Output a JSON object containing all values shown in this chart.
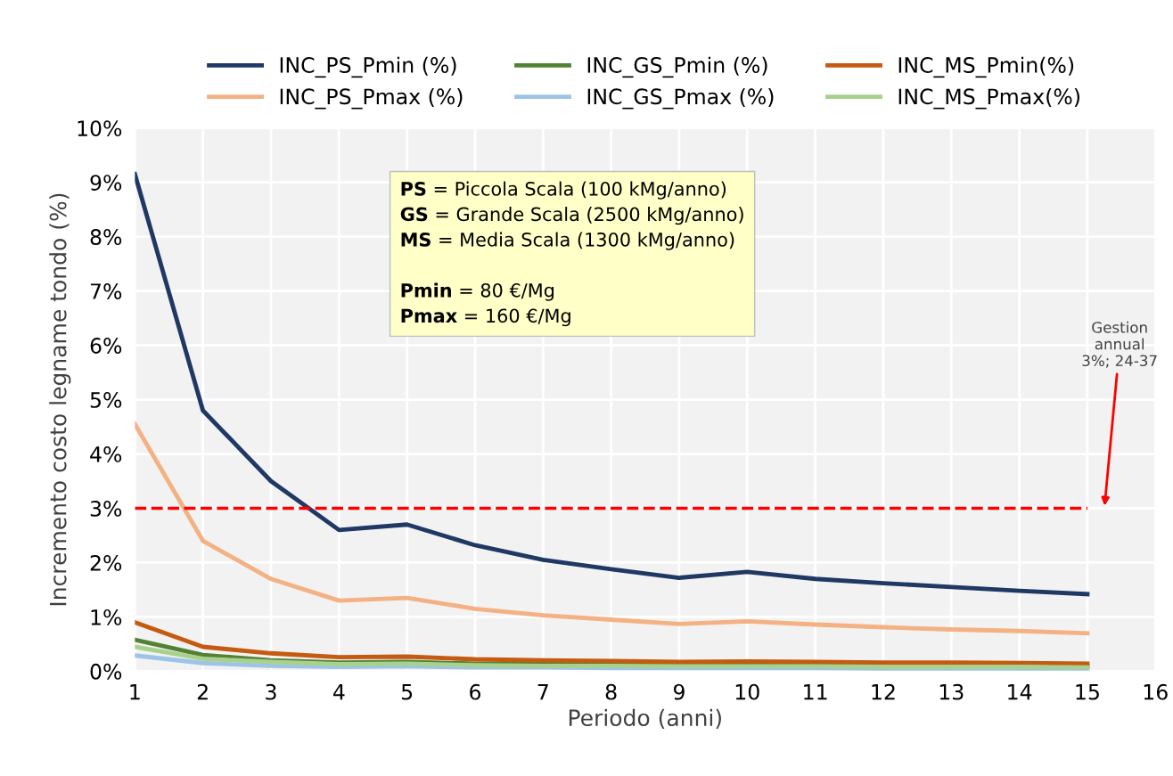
{
  "chart_data": {
    "type": "line",
    "xlabel": "Periodo (anni)",
    "ylabel": "Incremento costo legname tondo (%)",
    "x": [
      1,
      2,
      3,
      4,
      5,
      6,
      7,
      8,
      9,
      10,
      11,
      12,
      13,
      14,
      15
    ],
    "series": [
      {
        "name": "INC_PS_Pmin (%)",
        "color": "#1f3864",
        "values": [
          9.15,
          4.8,
          3.5,
          2.6,
          2.7,
          2.32,
          2.05,
          1.88,
          1.72,
          1.83,
          1.7,
          1.62,
          1.55,
          1.48,
          1.42
        ]
      },
      {
        "name": "INC_PS_Pmax (%)",
        "color": "#f4b183",
        "values": [
          4.55,
          2.4,
          1.7,
          1.3,
          1.35,
          1.15,
          1.03,
          0.95,
          0.87,
          0.92,
          0.86,
          0.81,
          0.77,
          0.74,
          0.7
        ]
      },
      {
        "name": "INC_GS_Pmin (%)",
        "color": "#548235",
        "values": [
          0.58,
          0.3,
          0.2,
          0.16,
          0.17,
          0.14,
          0.13,
          0.12,
          0.11,
          0.12,
          0.11,
          0.1,
          0.1,
          0.1,
          0.09
        ]
      },
      {
        "name": "INC_GS_Pmax (%)",
        "color": "#9dc3e6",
        "values": [
          0.29,
          0.15,
          0.1,
          0.08,
          0.09,
          0.07,
          0.07,
          0.06,
          0.06,
          0.06,
          0.06,
          0.05,
          0.05,
          0.05,
          0.05
        ]
      },
      {
        "name": "INC_MS_Pmin(%)",
        "color": "#c55a11",
        "values": [
          0.9,
          0.45,
          0.33,
          0.26,
          0.27,
          0.22,
          0.2,
          0.19,
          0.17,
          0.18,
          0.17,
          0.16,
          0.16,
          0.15,
          0.14
        ]
      },
      {
        "name": "INC_MS_Pmax(%)",
        "color": "#a9d18e",
        "values": [
          0.45,
          0.23,
          0.17,
          0.13,
          0.14,
          0.11,
          0.1,
          0.1,
          0.09,
          0.09,
          0.09,
          0.08,
          0.08,
          0.08,
          0.07
        ]
      }
    ],
    "xlim": [
      1,
      16
    ],
    "xticks": [
      1,
      2,
      3,
      4,
      5,
      6,
      7,
      8,
      9,
      10,
      11,
      12,
      13,
      14,
      15,
      16
    ],
    "ylim": [
      0,
      10
    ],
    "yticks": [
      {
        "value": 0,
        "label": "0%"
      },
      {
        "value": 1,
        "label": "1%"
      },
      {
        "value": 2,
        "label": "2%"
      },
      {
        "value": 3,
        "label": "3%"
      },
      {
        "value": 4,
        "label": "4%"
      },
      {
        "value": 5,
        "label": "5%"
      },
      {
        "value": 6,
        "label": "6%"
      },
      {
        "value": 7,
        "label": "7%"
      },
      {
        "value": 8,
        "label": "8%"
      },
      {
        "value": 9,
        "label": "9%"
      },
      {
        "value": 10,
        "label": "10%"
      }
    ],
    "ref_lines": [
      {
        "axis": "y",
        "value": 3,
        "color": "#ff0000",
        "line_style": "dashed"
      }
    ],
    "annotations": [
      "PS = Piccola Scala (100 kMg/anno)\nGS = Grande Scala (2500 kMg/anno)\nMS = Media Scala (1300 kMg/anno)\n\nPmin = 80 €/Mg\nPmax = 160 €/Mg",
      "Gestion\nannual\n3%; 24-37"
    ],
    "grid": true,
    "legend": "top",
    "marker": "none",
    "line_style": "solid"
  }
}
